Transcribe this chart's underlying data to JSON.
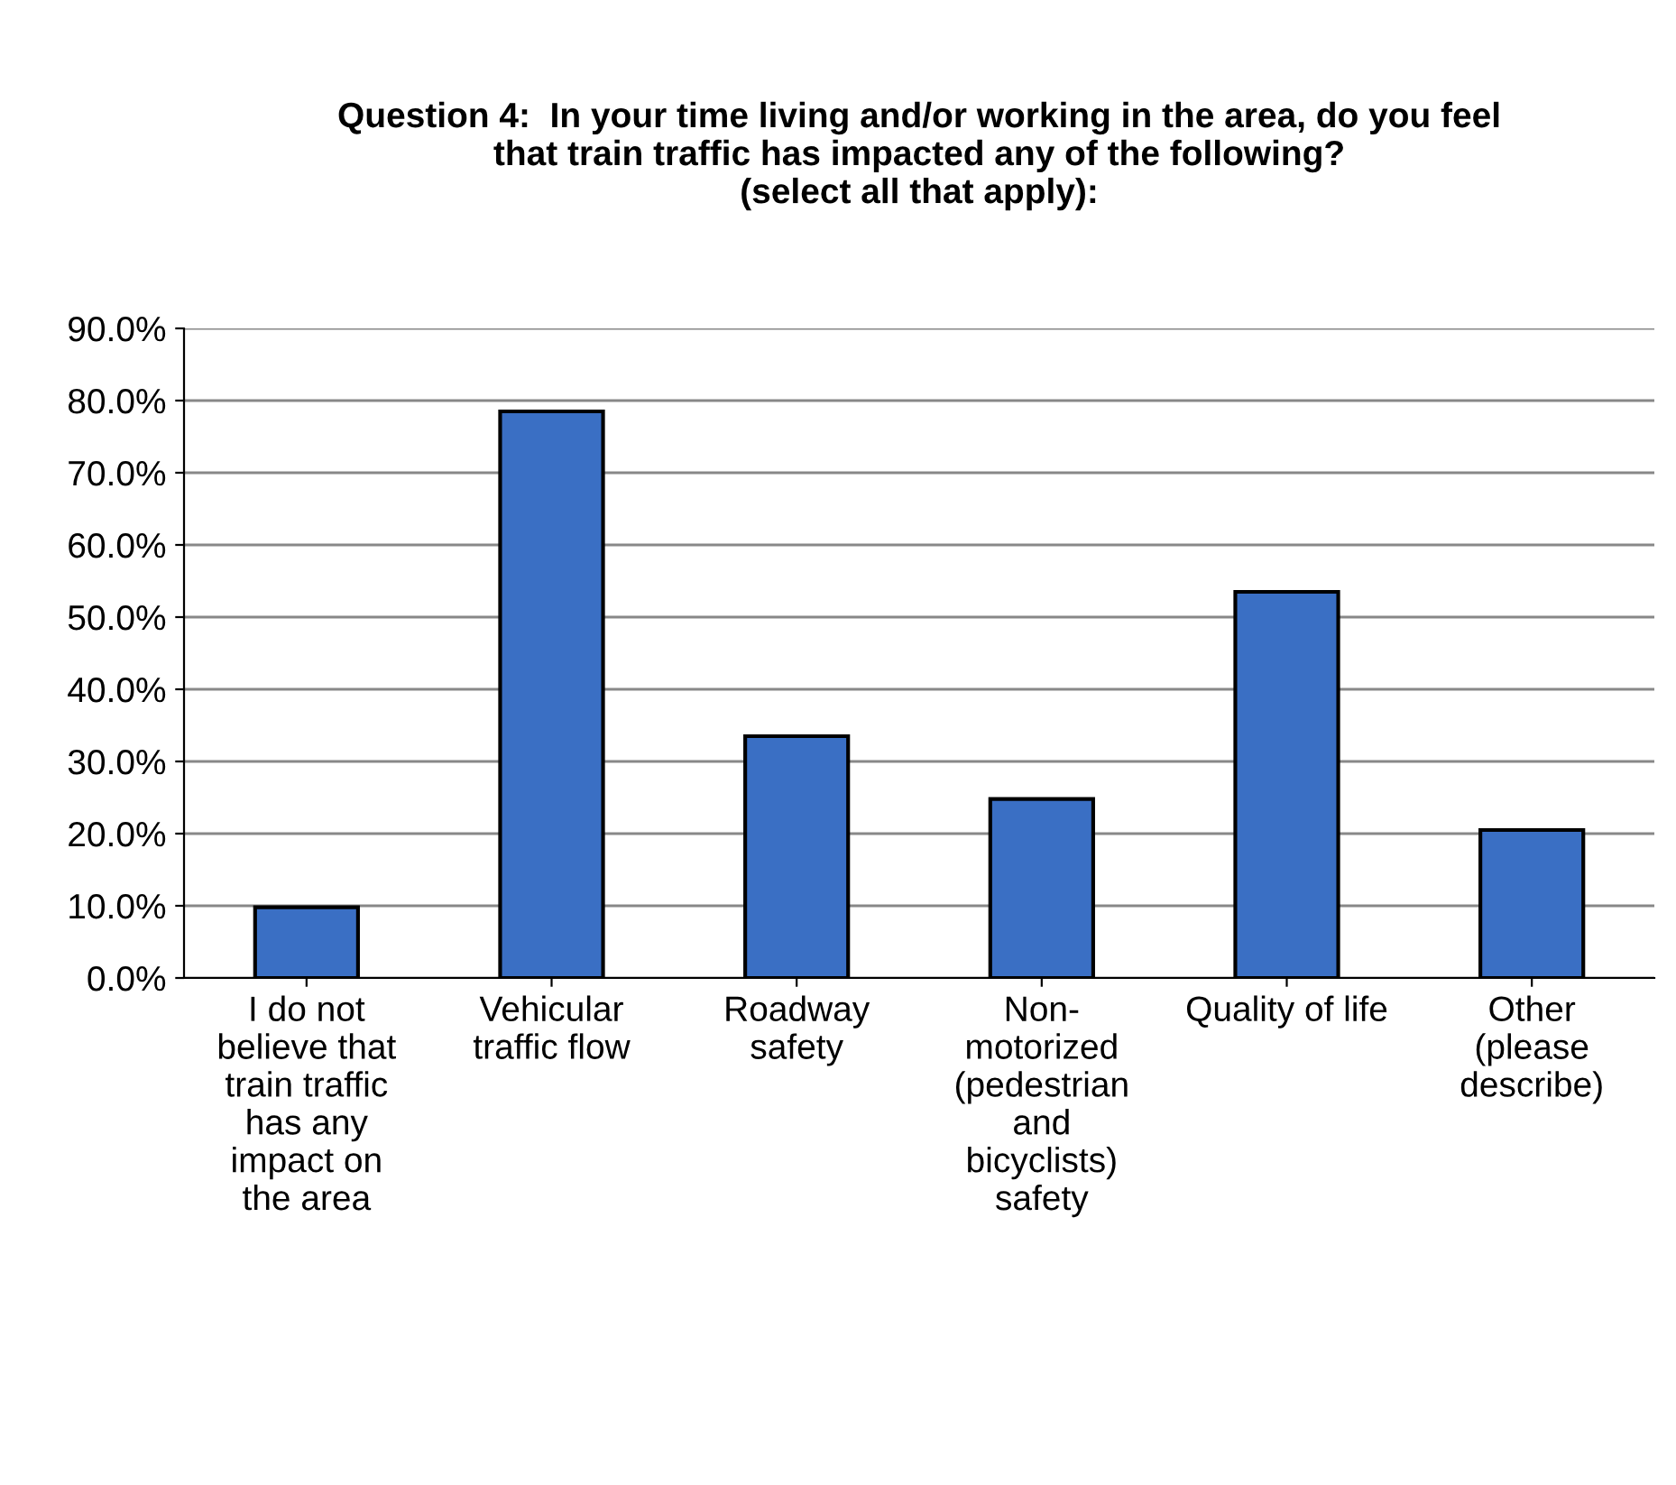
{
  "chart_data": {
    "type": "bar",
    "title": "Question 4:  In your time living and/or working in the area, do you feel\nthat train traffic has impacted any of the following?\n(select all that apply):",
    "categories": [
      "I do not\nbelieve that\ntrain traffic\nhas any\nimpact on\nthe area",
      "Vehicular\ntraffic flow",
      "Roadway\nsafety",
      "Non-\nmotorized\n(pedestrian\nand\nbicyclists)\nsafety",
      "Quality of life",
      "Other\n(please\ndescribe)"
    ],
    "values": [
      9.8,
      78.5,
      33.5,
      24.8,
      53.5,
      20.5
    ],
    "color": "#3a6fc4",
    "ylim": [
      0,
      90
    ],
    "yticks": [
      {
        "value": 0,
        "label": "0.0%"
      },
      {
        "value": 10,
        "label": "10.0%"
      },
      {
        "value": 20,
        "label": "20.0%"
      },
      {
        "value": 30,
        "label": "30.0%"
      },
      {
        "value": 40,
        "label": "40.0%"
      },
      {
        "value": 50,
        "label": "50.0%"
      },
      {
        "value": 60,
        "label": "60.0%"
      },
      {
        "value": 70,
        "label": "70.0%"
      },
      {
        "value": 80,
        "label": "80.0%"
      },
      {
        "value": 90,
        "label": "90.0%"
      }
    ],
    "grid": "y"
  }
}
